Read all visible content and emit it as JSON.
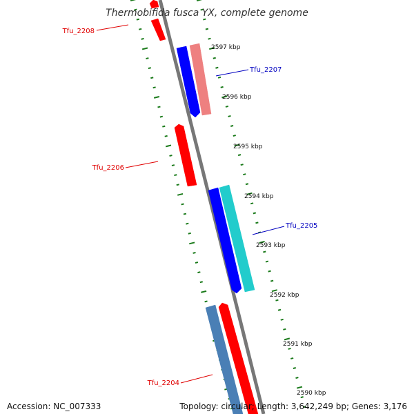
{
  "map": {
    "title": "Thermobifida fusca YX, complete genome",
    "ticks": [
      {
        "label": "2597 kbp"
      },
      {
        "label": "2596 kbp"
      },
      {
        "label": "2595 kbp"
      },
      {
        "label": "2594 kbp"
      },
      {
        "label": "2593 kbp"
      },
      {
        "label": "2592 kbp"
      },
      {
        "label": "2591 kbp"
      },
      {
        "label": "2590 kbp"
      }
    ],
    "gene_labels": [
      {
        "text": "Tfu_2208",
        "color": "#e00000"
      },
      {
        "text": "Tfu_2207",
        "color": "#0000c0"
      },
      {
        "text": "Tfu_2206",
        "color": "#e00000"
      },
      {
        "text": "Tfu_2205",
        "color": "#0000c0"
      },
      {
        "text": "Tfu_2204",
        "color": "#e00000"
      }
    ],
    "colors": {
      "forward_cds": "#ff0000",
      "reverse_cds": "#0000ff",
      "pink_feature": "#ee8080",
      "cyan_feature": "#22cccc",
      "steel_feature": "#4a7fb5",
      "backbone": "#777777",
      "tick": "#1a7a1a"
    }
  },
  "footer": {
    "accession": "Accession: NC_007333",
    "summary": "Topology: circular; Length: 3,642,249 bp; Genes: 3,176"
  }
}
